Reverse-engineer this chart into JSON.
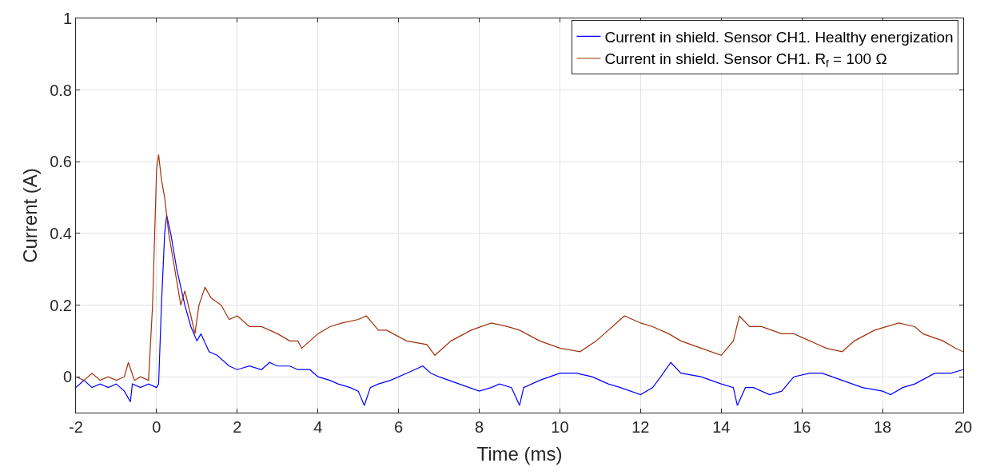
{
  "chart_data": {
    "type": "line",
    "xlabel": "Time (ms)",
    "ylabel": "Current (A)",
    "xlim": [
      -2,
      20
    ],
    "xticks": [
      -2,
      0,
      2,
      4,
      6,
      8,
      10,
      12,
      14,
      16,
      18,
      20
    ],
    "ylim": [
      -0.1,
      1
    ],
    "yticks": [
      0,
      0.2,
      0.4,
      0.6,
      0.8,
      1
    ],
    "grid": true,
    "legend": "top right",
    "line_style": "solid",
    "marker": "none",
    "series": [
      {
        "name": "Current in shield. Sensor CH1. Healthy energization",
        "color": "#0000ff",
        "x": [
          -2,
          -1.8,
          -1.6,
          -1.4,
          -1.2,
          -1.0,
          -0.8,
          -0.65,
          -0.6,
          -0.4,
          -0.2,
          0,
          0.05,
          0.12,
          0.2,
          0.25,
          0.35,
          0.5,
          0.6,
          0.7,
          0.85,
          1.0,
          1.1,
          1.3,
          1.5,
          1.8,
          2.0,
          2.3,
          2.6,
          2.8,
          3.0,
          3.3,
          3.5,
          3.8,
          4.0,
          4.3,
          4.5,
          4.8,
          5.0,
          5.15,
          5.3,
          5.5,
          5.8,
          6.2,
          6.6,
          6.8,
          7.0,
          7.5,
          8.0,
          8.3,
          8.5,
          8.8,
          9.0,
          9.1,
          9.5,
          10.0,
          10.4,
          10.8,
          11.2,
          11.5,
          12.0,
          12.3,
          12.5,
          12.75,
          13.0,
          13.5,
          14.0,
          14.3,
          14.4,
          14.6,
          14.8,
          15.2,
          15.5,
          15.8,
          16.2,
          16.5,
          17.0,
          17.5,
          18.0,
          18.2,
          18.5,
          18.8,
          19.3,
          19.7,
          20.0
        ],
        "values": [
          -0.03,
          -0.01,
          -0.03,
          -0.02,
          -0.03,
          -0.02,
          -0.04,
          -0.07,
          -0.02,
          -0.03,
          -0.02,
          -0.03,
          -0.02,
          0.2,
          0.4,
          0.45,
          0.4,
          0.3,
          0.25,
          0.2,
          0.14,
          0.1,
          0.12,
          0.07,
          0.06,
          0.03,
          0.02,
          0.03,
          0.02,
          0.04,
          0.03,
          0.03,
          0.02,
          0.02,
          0.0,
          -0.01,
          -0.02,
          -0.03,
          -0.04,
          -0.08,
          -0.03,
          -0.02,
          -0.01,
          0.01,
          0.03,
          0.01,
          0.0,
          -0.02,
          -0.04,
          -0.03,
          -0.02,
          -0.03,
          -0.08,
          -0.03,
          -0.01,
          0.01,
          0.01,
          0.0,
          -0.02,
          -0.03,
          -0.05,
          -0.03,
          0.0,
          0.04,
          0.01,
          0.0,
          -0.02,
          -0.03,
          -0.08,
          -0.03,
          -0.03,
          -0.05,
          -0.04,
          0.0,
          0.01,
          0.01,
          -0.01,
          -0.03,
          -0.04,
          -0.05,
          -0.03,
          -0.02,
          0.01,
          0.01,
          0.02
        ]
      },
      {
        "name": "Current in shield. Sensor CH1. R$_{f}$ = 100 Ω",
        "color": "#a0320a",
        "x": [
          -2,
          -1.8,
          -1.6,
          -1.4,
          -1.2,
          -1.0,
          -0.8,
          -0.7,
          -0.55,
          -0.4,
          -0.2,
          -0.1,
          0.0,
          0.05,
          0.12,
          0.2,
          0.3,
          0.45,
          0.6,
          0.7,
          0.85,
          0.95,
          1.05,
          1.2,
          1.35,
          1.6,
          1.8,
          2.0,
          2.3,
          2.6,
          3.0,
          3.3,
          3.5,
          3.6,
          3.8,
          4.0,
          4.3,
          4.6,
          5.0,
          5.2,
          5.5,
          5.7,
          6.2,
          6.7,
          6.9,
          7.3,
          7.8,
          8.3,
          8.7,
          9.0,
          9.5,
          10.0,
          10.5,
          10.9,
          11.3,
          11.6,
          12.0,
          12.3,
          12.7,
          13.0,
          13.5,
          14.0,
          14.3,
          14.45,
          14.7,
          15.0,
          15.5,
          15.8,
          16.2,
          16.6,
          17.0,
          17.3,
          17.8,
          18.4,
          18.8,
          19.0,
          19.5,
          19.8,
          20.0
        ],
        "values": [
          0.0,
          -0.01,
          0.01,
          -0.01,
          0.0,
          -0.01,
          0.0,
          0.04,
          -0.01,
          0.0,
          -0.01,
          0.2,
          0.58,
          0.62,
          0.55,
          0.5,
          0.4,
          0.3,
          0.2,
          0.24,
          0.17,
          0.12,
          0.2,
          0.25,
          0.22,
          0.2,
          0.16,
          0.17,
          0.14,
          0.14,
          0.12,
          0.1,
          0.1,
          0.08,
          0.1,
          0.12,
          0.14,
          0.15,
          0.16,
          0.17,
          0.13,
          0.13,
          0.1,
          0.09,
          0.06,
          0.1,
          0.13,
          0.15,
          0.14,
          0.13,
          0.1,
          0.08,
          0.07,
          0.1,
          0.14,
          0.17,
          0.15,
          0.14,
          0.12,
          0.1,
          0.08,
          0.06,
          0.1,
          0.17,
          0.14,
          0.14,
          0.12,
          0.12,
          0.1,
          0.08,
          0.07,
          0.1,
          0.13,
          0.15,
          0.14,
          0.12,
          0.1,
          0.08,
          0.07
        ]
      }
    ]
  }
}
